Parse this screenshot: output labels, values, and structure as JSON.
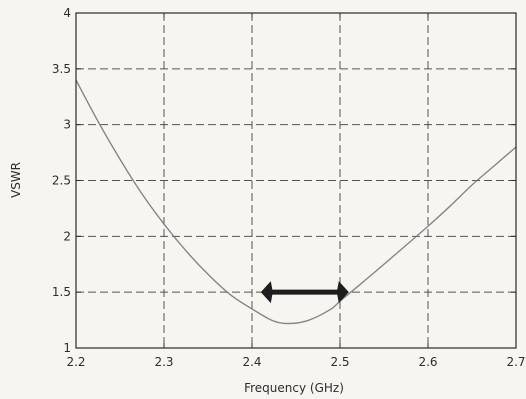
{
  "chart_data": {
    "type": "line",
    "xlabel": "Frequency (GHz)",
    "ylabel": "VSWR",
    "xlim": [
      2.2,
      2.7
    ],
    "ylim": [
      1,
      4
    ],
    "xticks": [
      2.2,
      2.3,
      2.4,
      2.5,
      2.6,
      2.7
    ],
    "xtick_labels": [
      "2.2",
      "2.3",
      "2.4",
      "2.5",
      "2.6",
      "2.7"
    ],
    "yticks": [
      1,
      1.5,
      2,
      2.5,
      3,
      3.5,
      4
    ],
    "ytick_labels": [
      "1",
      "1.5",
      "2",
      "2.5",
      "3",
      "3.5",
      "4"
    ],
    "grid": true,
    "series": [
      {
        "x": [
          2.2,
          2.225,
          2.25,
          2.275,
          2.3,
          2.325,
          2.35,
          2.375,
          2.4,
          2.425,
          2.445,
          2.465,
          2.49,
          2.5,
          2.52,
          2.55,
          2.575,
          2.6,
          2.625,
          2.65,
          2.675,
          2.7
        ],
        "y": [
          3.4,
          3.03,
          2.69,
          2.38,
          2.11,
          1.87,
          1.66,
          1.48,
          1.35,
          1.24,
          1.22,
          1.25,
          1.35,
          1.42,
          1.55,
          1.75,
          1.92,
          2.09,
          2.27,
          2.46,
          2.63,
          2.8
        ]
      }
    ],
    "annotations": [
      {
        "type": "double-arrow",
        "x_start": 2.41,
        "x_end": 2.51,
        "y": 1.5
      }
    ]
  },
  "colors": {
    "background": "#f6f5f2",
    "axes": "#2a2a2a",
    "grid": "#3a3a3a",
    "curve": "#7a7a7a",
    "arrow": "#1e1e1e"
  }
}
